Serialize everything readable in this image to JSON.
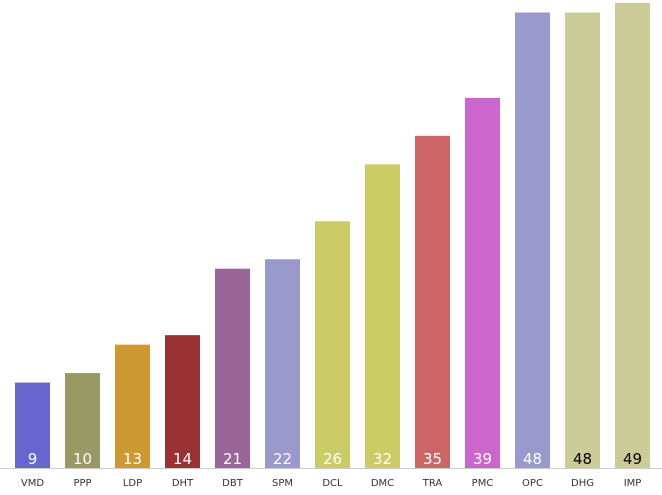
{
  "chart_data": {
    "type": "bar",
    "categories": [
      "VMD",
      "PPP",
      "LDP",
      "DHT",
      "DBT",
      "SPM",
      "DCL",
      "DMC",
      "TRA",
      "PMC",
      "OPC",
      "DHG",
      "IMP"
    ],
    "values": [
      9,
      10,
      13,
      14,
      21,
      22,
      26,
      32,
      35,
      39,
      48,
      48,
      49
    ],
    "colors": [
      "#6666cc",
      "#999966",
      "#cc9933",
      "#993333",
      "#996699",
      "#9999cc",
      "#cccc66",
      "#cccc66",
      "#cc6666",
      "#cc66cc",
      "#9999cc",
      "#cccc99",
      "#cccc99"
    ],
    "label_colors": [
      "#ffffff",
      "#ffffff",
      "#ffffff",
      "#ffffff",
      "#ffffff",
      "#ffffff",
      "#ffffff",
      "#ffffff",
      "#ffffff",
      "#ffffff",
      "#ffffff",
      "#000000",
      "#000000"
    ],
    "data_labels": true,
    "title": "",
    "xlabel": "",
    "ylabel": "",
    "ylim": [
      0,
      49
    ],
    "grid": false,
    "legend": "none"
  }
}
